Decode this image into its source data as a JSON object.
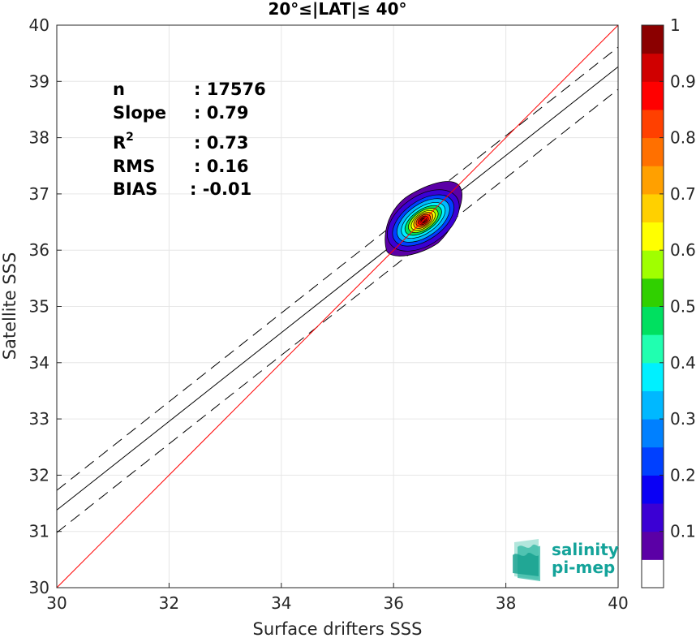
{
  "chart_data": {
    "type": "scatter",
    "title": "20°≤|LAT|≤ 40°",
    "xlabel": "Surface drifters SSS",
    "ylabel": "Satellite SSS",
    "xlim": [
      30,
      40
    ],
    "ylim": [
      30,
      40
    ],
    "xticks": [
      "30",
      "32",
      "34",
      "36",
      "38",
      "40"
    ],
    "yticks": [
      "30",
      "31",
      "32",
      "33",
      "34",
      "35",
      "36",
      "37",
      "38",
      "39",
      "40"
    ],
    "grid": true,
    "stats": [
      {
        "label": "n",
        "value": ": 17576"
      },
      {
        "label": "Slope",
        "value": ": 0.79"
      },
      {
        "label": "R",
        "sup": "2",
        "value": ": 0.73"
      },
      {
        "label": "RMS",
        "value": ": 0.16"
      },
      {
        "label": "BIAS",
        "value": ": -0.01"
      }
    ],
    "identity_line": {
      "x": [
        30,
        40
      ],
      "y": [
        30,
        40
      ],
      "color": "#ff0000"
    },
    "regression_line": {
      "x": [
        30,
        40
      ],
      "y": [
        31.38,
        39.26
      ],
      "color": "#000000"
    },
    "confidence_upper": {
      "x": [
        30,
        40
      ],
      "y": [
        31.73,
        39.61
      ],
      "color": "#000000",
      "style": "dashed"
    },
    "confidence_lower": {
      "x": [
        30,
        40
      ],
      "y": [
        30.98,
        38.86
      ],
      "color": "#000000",
      "style": "dashed"
    },
    "density_center": {
      "x": 36.5,
      "y": 36.5
    },
    "colorbar": {
      "ticks": [
        "0.1",
        "0.2",
        "0.3",
        "0.4",
        "0.5",
        "0.6",
        "0.7",
        "0.8",
        "0.9",
        "1"
      ],
      "colors": [
        "#ffffff",
        "#5b00a6",
        "#3b00d4",
        "#0a00f5",
        "#0040ff",
        "#0080ff",
        "#00b8ff",
        "#00f0ff",
        "#20ffb0",
        "#00e060",
        "#30d000",
        "#a0ff00",
        "#ffff00",
        "#ffd000",
        "#ffa000",
        "#ff7000",
        "#ff4000",
        "#ff0000",
        "#d00000",
        "#8b0000"
      ]
    },
    "logo": {
      "line1": "salinity",
      "line2": "pi-mep"
    }
  }
}
